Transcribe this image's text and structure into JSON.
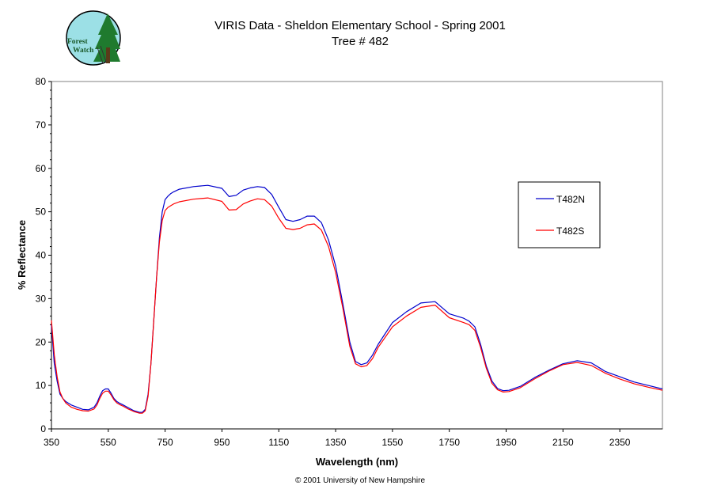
{
  "logo": {
    "line1": "Forest",
    "line2": "Watch"
  },
  "chart_data": {
    "type": "line",
    "title": "VIRIS Data - Sheldon Elementary School - Spring 2001",
    "subtitle": "Tree # 482",
    "xlabel": "Wavelength (nm)",
    "ylabel": "% Reflectance",
    "xlim": [
      350,
      2500
    ],
    "ylim": [
      0,
      80
    ],
    "x_ticks": [
      350,
      550,
      750,
      950,
      1150,
      1350,
      1550,
      1750,
      1950,
      2150,
      2350
    ],
    "y_ticks": [
      0,
      10,
      20,
      30,
      40,
      50,
      60,
      70,
      80
    ],
    "grid": false,
    "legend_position": "right",
    "series": [
      {
        "name": "T482N",
        "color": "#0000cc",
        "x": [
          350,
          360,
          370,
          380,
          390,
          400,
          420,
          440,
          460,
          480,
          500,
          510,
          520,
          530,
          540,
          550,
          560,
          570,
          580,
          590,
          600,
          620,
          640,
          660,
          670,
          680,
          690,
          700,
          710,
          720,
          730,
          740,
          750,
          760,
          770,
          780,
          800,
          850,
          900,
          950,
          975,
          1000,
          1025,
          1050,
          1075,
          1100,
          1125,
          1150,
          1175,
          1200,
          1225,
          1250,
          1275,
          1300,
          1325,
          1350,
          1375,
          1400,
          1420,
          1440,
          1460,
          1480,
          1500,
          1550,
          1600,
          1650,
          1700,
          1750,
          1800,
          1820,
          1840,
          1860,
          1880,
          1900,
          1920,
          1940,
          1960,
          2000,
          2050,
          2100,
          2150,
          2200,
          2250,
          2300,
          2350,
          2400,
          2450,
          2500
        ],
        "values": [
          24,
          15,
          11,
          8,
          7,
          6.3,
          5.5,
          5.0,
          4.5,
          4.4,
          5.0,
          6.0,
          7.5,
          8.8,
          9.2,
          9.2,
          8.2,
          7.0,
          6.3,
          5.9,
          5.6,
          4.9,
          4.2,
          3.8,
          3.8,
          4.5,
          8,
          15,
          25,
          35,
          44,
          50,
          52.8,
          53.6,
          54.2,
          54.6,
          55.2,
          55.8,
          56.1,
          55.4,
          53.5,
          53.8,
          55.0,
          55.5,
          55.8,
          55.6,
          54.0,
          51.0,
          48.2,
          47.8,
          48.2,
          49.0,
          49.0,
          47.5,
          43.5,
          37.5,
          29.0,
          20.0,
          15.5,
          14.8,
          15.2,
          17.0,
          19.5,
          24.5,
          27.0,
          29.0,
          29.3,
          26.5,
          25.5,
          24.8,
          23.5,
          19.5,
          14.5,
          11.0,
          9.3,
          8.8,
          8.9,
          9.8,
          11.8,
          13.5,
          15.0,
          15.7,
          15.2,
          13.2,
          12.0,
          10.8,
          10.0,
          9.2
        ]
      },
      {
        "name": "T482S",
        "color": "#ff0000",
        "x": [
          350,
          360,
          370,
          380,
          390,
          400,
          420,
          440,
          460,
          480,
          500,
          510,
          520,
          530,
          540,
          550,
          560,
          570,
          580,
          590,
          600,
          620,
          640,
          660,
          670,
          680,
          690,
          700,
          710,
          720,
          730,
          740,
          750,
          760,
          770,
          780,
          800,
          850,
          900,
          950,
          975,
          1000,
          1025,
          1050,
          1075,
          1100,
          1125,
          1150,
          1175,
          1200,
          1225,
          1250,
          1275,
          1300,
          1325,
          1350,
          1375,
          1400,
          1420,
          1440,
          1460,
          1480,
          1500,
          1550,
          1600,
          1650,
          1700,
          1750,
          1800,
          1820,
          1840,
          1860,
          1880,
          1900,
          1920,
          1940,
          1960,
          2000,
          2050,
          2100,
          2150,
          2200,
          2250,
          2300,
          2350,
          2400,
          2450,
          2500
        ],
        "values": [
          25,
          17,
          12,
          8.5,
          7,
          6.0,
          5.0,
          4.5,
          4.2,
          4.1,
          4.6,
          5.5,
          7.0,
          8.2,
          8.7,
          8.7,
          7.8,
          6.7,
          6.0,
          5.6,
          5.3,
          4.6,
          4.0,
          3.6,
          3.6,
          4.2,
          7.5,
          15,
          25,
          35,
          43,
          48,
          50.3,
          51.0,
          51.4,
          51.8,
          52.3,
          52.9,
          53.2,
          52.4,
          50.4,
          50.5,
          51.8,
          52.5,
          53.0,
          52.8,
          51.3,
          48.5,
          46.2,
          45.9,
          46.2,
          47.0,
          47.2,
          45.8,
          42.0,
          36.0,
          28.0,
          19.0,
          15.0,
          14.3,
          14.6,
          16.2,
          18.8,
          23.5,
          26.0,
          28.0,
          28.5,
          25.6,
          24.5,
          24.0,
          22.7,
          18.8,
          14.0,
          10.5,
          9.0,
          8.5,
          8.6,
          9.5,
          11.5,
          13.3,
          14.8,
          15.3,
          14.6,
          12.8,
          11.5,
          10.4,
          9.6,
          8.9
        ]
      }
    ]
  },
  "copyright": "© 2001 University of New Hampshire"
}
